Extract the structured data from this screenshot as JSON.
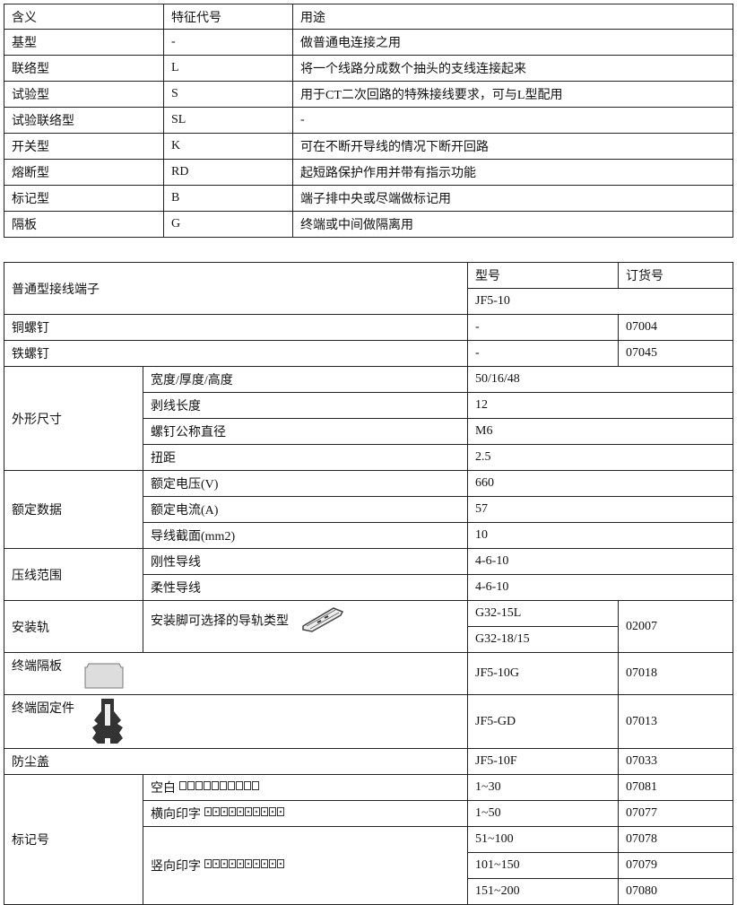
{
  "table1": {
    "headers": [
      "含义",
      "特征代号",
      "用途"
    ],
    "rows": [
      [
        "基型",
        "-",
        "做普通电连接之用"
      ],
      [
        "联络型",
        "L",
        "将一个线路分成数个抽头的支线连接起来"
      ],
      [
        "试验型",
        "S",
        "用于CT二次回路的特殊接线要求，可与L型配用"
      ],
      [
        "试验联络型",
        "SL",
        "-"
      ],
      [
        "开关型",
        "K",
        "可在不断开导线的情况下断开回路"
      ],
      [
        "熔断型",
        "RD",
        "起短路保护作用并带有指示功能"
      ],
      [
        "标记型",
        "B",
        "端子排中央或尽端做标记用"
      ],
      [
        "隔板",
        "G",
        "终端或中间做隔离用"
      ]
    ]
  },
  "table2": {
    "title": "普通型接线端子",
    "model_header": "型号",
    "order_header": "订货号",
    "model": "JF5-10",
    "copper_screw": {
      "label": "铜螺钉",
      "model": "-",
      "order": "07004"
    },
    "iron_screw": {
      "label": "铁螺钉",
      "model": "-",
      "order": "07045"
    },
    "dimensions": {
      "label": "外形尺寸",
      "items": [
        {
          "label": "宽度/厚度/高度",
          "value": "50/16/48"
        },
        {
          "label": "剥线长度",
          "value": "12"
        },
        {
          "label": "螺钉公称直径",
          "value": "M6"
        },
        {
          "label": "扭距",
          "value": "2.5"
        }
      ]
    },
    "rated": {
      "label": "额定数据",
      "items": [
        {
          "label": "额定电压(V)",
          "value": "660"
        },
        {
          "label": "额定电流(A)",
          "value": "57"
        },
        {
          "label": "导线截面(mm2)",
          "value": "10"
        }
      ]
    },
    "crimp": {
      "label": "压线范围",
      "items": [
        {
          "label": "刚性导线",
          "value": "4-6-10"
        },
        {
          "label": "柔性导线",
          "value": "4-6-10"
        }
      ]
    },
    "rail": {
      "label": "安装轨",
      "desc": "安装脚可选择的导轨类型",
      "models": [
        "G32-15L",
        "G32-18/15"
      ],
      "order": "02007",
      "icon": "din-rail-icon"
    },
    "end_plate": {
      "label": "终端隔板",
      "model": "JF5-10G",
      "order": "07018",
      "icon": "end-plate-icon"
    },
    "end_stop": {
      "label": "终端固定件",
      "model": "JF5-GD",
      "order": "07013",
      "icon": "end-stop-icon"
    },
    "dust_cover": {
      "label": "防尘盖",
      "model": "JF5-10F",
      "order": "07033"
    },
    "marker": {
      "label": "标记号",
      "items": [
        {
          "label": "空白",
          "range": "1~30",
          "order": "07081"
        },
        {
          "label": "横向印字",
          "range": "1~50",
          "order": "07077"
        },
        {
          "label": "竖向印字",
          "range": "51~100",
          "order": "07078"
        },
        {
          "range": "101~150",
          "order": "07079"
        },
        {
          "range": "151~200",
          "order": "07080"
        }
      ]
    }
  }
}
